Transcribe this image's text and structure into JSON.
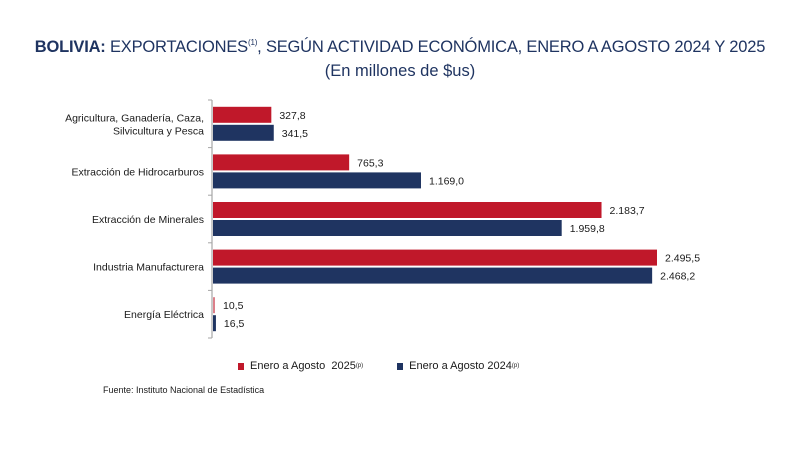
{
  "header": {
    "title_bold": "BOLIVIA:",
    "title_rest": " EXPORTACIONES",
    "title_note": "(1)",
    "title_tail": ", SEGÚN ACTIVIDAD ECONÓMICA, ENERO A AGOSTO 2024 Y 2025",
    "subtitle": "(En millones de $us)"
  },
  "chart_data": {
    "type": "bar",
    "orientation": "horizontal",
    "title": "BOLIVIA: EXPORTACIONES(1), SEGÚN ACTIVIDAD ECONÓMICA, ENERO A AGOSTO 2024 Y 2025",
    "subtitle": "(En millones de $us)",
    "xlabel": "",
    "ylabel": "",
    "grid": false,
    "xlim": [
      0,
      2600
    ],
    "categories": [
      [
        "Agricultura, Ganadería, Caza,",
        "Silvicultura y Pesca"
      ],
      [
        "Extracción de Hidrocarburos"
      ],
      [
        "Extracción de Minerales"
      ],
      [
        "Industria Manufacturera"
      ],
      [
        "Energía Eléctrica"
      ]
    ],
    "series": [
      {
        "name": "Enero a Agosto  2025",
        "note": "(p)",
        "color": "#c0182a",
        "values": [
          327.8,
          765.3,
          2183.7,
          2495.5,
          10.5
        ],
        "labels": [
          "327,8",
          "765,3",
          "2.183,7",
          "2.495,5",
          "10,5"
        ]
      },
      {
        "name": "Enero a Agosto 2024",
        "note": "(p)",
        "color": "#1f3461",
        "values": [
          341.5,
          1169.0,
          1959.8,
          2468.2,
          16.5
        ],
        "labels": [
          "341,5",
          "1.169,0",
          "1.959,8",
          "2.468,2",
          "16,5"
        ]
      }
    ],
    "legend_position": "bottom-center"
  },
  "footer": {
    "source": "Fuente: Instituto Nacional de Estadística"
  }
}
